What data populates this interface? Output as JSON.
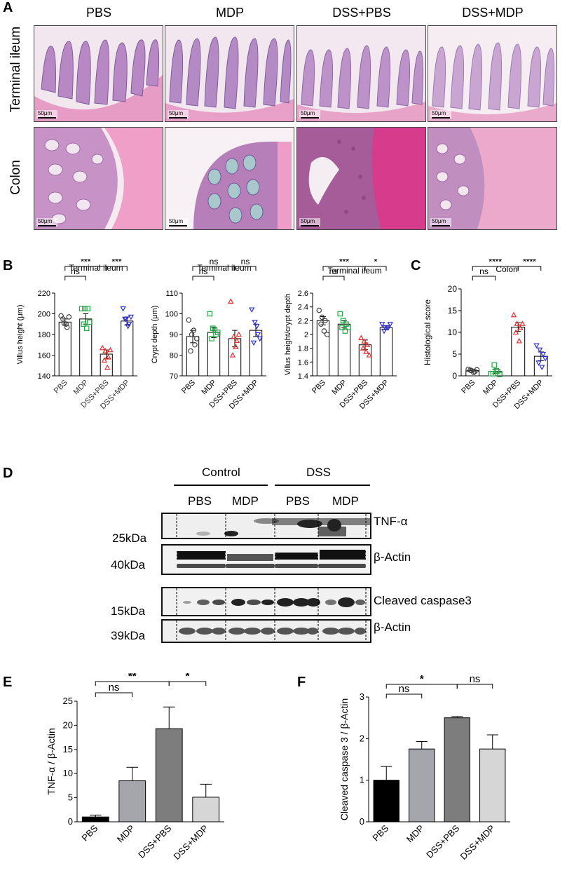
{
  "panelA": {
    "letter": "A",
    "columns": [
      "PBS",
      "MDP",
      "DSS+PBS",
      "DSS+MDP"
    ],
    "rows": [
      "Terminal ileum",
      "Colon"
    ],
    "scale": "50μm"
  },
  "panelB": {
    "letter": "B"
  },
  "panelC": {
    "letter": "C"
  },
  "panelD": {
    "letter": "D",
    "groups": [
      "Control",
      "DSS"
    ],
    "lanes": [
      "PBS",
      "MDP",
      "PBS",
      "MDP"
    ],
    "bands": [
      {
        "name": "TNF-α",
        "marker": "25kDa"
      },
      {
        "name": "β-Actin",
        "marker": "40kDa"
      },
      {
        "name": "Cleaved caspase3",
        "marker": "15kDa"
      },
      {
        "name": "β-Actin",
        "marker": "39kDa"
      }
    ]
  },
  "panelE": {
    "letter": "E"
  },
  "panelF": {
    "letter": "F"
  },
  "chart_data": [
    {
      "id": "B1",
      "type": "bar",
      "title": "Terminal ileum",
      "ylabel": "Villus height (μm)",
      "categories": [
        "PBS",
        "MDP",
        "DSS+PBS",
        "DSS+MDP"
      ],
      "values": [
        192,
        195,
        161,
        193
      ],
      "errors": [
        3,
        5,
        4,
        4
      ],
      "points": [
        [
          198,
          191,
          187,
          195,
          190,
          197
        ],
        [
          205,
          205,
          205,
          190,
          186,
          192
        ],
        [
          167,
          164,
          158,
          155,
          148,
          165
        ],
        [
          205,
          195,
          190,
          195,
          188,
          197
        ]
      ],
      "ylim": [
        140,
        220
      ],
      "yticks": [
        140,
        160,
        180,
        200,
        220
      ],
      "colors": [
        "#444444",
        "#22aa44",
        "#e03030",
        "#3030cc"
      ],
      "markers": [
        "circle",
        "square",
        "triangle-up",
        "triangle-down"
      ],
      "sig": [
        {
          "from": 0,
          "to": 1,
          "label": "ns",
          "level": 0
        },
        {
          "from": 0,
          "to": 2,
          "label": "***",
          "level": 1
        },
        {
          "from": 2,
          "to": 3,
          "label": "***",
          "level": 1
        }
      ]
    },
    {
      "id": "B2",
      "type": "bar",
      "title": "Terminal ileum",
      "ylabel": "Crypt depth (μm)",
      "categories": [
        "PBS",
        "MDP",
        "DSS+PBS",
        "DSS+MDP"
      ],
      "values": [
        89,
        91,
        88,
        92
      ],
      "errors": [
        3,
        2.5,
        4,
        3
      ],
      "points": [
        [
          97,
          90,
          85,
          82,
          92,
          88
        ],
        [
          100,
          93,
          90,
          88,
          92,
          91
        ],
        [
          106,
          89,
          87,
          80,
          84,
          90
        ],
        [
          102,
          96,
          90,
          86,
          94,
          88
        ]
      ],
      "ylim": [
        70,
        110
      ],
      "yticks": [
        70,
        80,
        90,
        100,
        110
      ],
      "colors": [
        "#444444",
        "#22aa44",
        "#e03030",
        "#3030cc"
      ],
      "markers": [
        "circle",
        "square",
        "triangle-up",
        "triangle-down"
      ],
      "sig": [
        {
          "from": 0,
          "to": 1,
          "label": "ns",
          "level": 0
        },
        {
          "from": 0,
          "to": 2,
          "label": "ns",
          "level": 1
        },
        {
          "from": 2,
          "to": 3,
          "label": "ns",
          "level": 1
        }
      ]
    },
    {
      "id": "B3",
      "type": "bar",
      "title": "Terminal ileum",
      "ylabel": "Villus height/crypt depth",
      "categories": [
        "PBS",
        "MDP",
        "DSS+PBS",
        "DSS+MDP"
      ],
      "values": [
        2.2,
        2.15,
        1.85,
        2.1
      ],
      "errors": [
        0.06,
        0.05,
        0.07,
        0.03
      ],
      "points": [
        [
          2.35,
          2.25,
          2.2,
          2.15,
          2.05,
          2.0
        ],
        [
          2.3,
          2.2,
          2.15,
          2.1,
          2.05,
          2.1
        ],
        [
          1.95,
          1.9,
          1.85,
          1.8,
          1.75,
          1.7
        ],
        [
          2.15,
          2.1,
          2.1,
          2.05,
          2.1,
          2.15
        ]
      ],
      "ylim": [
        1.4,
        2.6
      ],
      "yticks": [
        1.4,
        1.6,
        1.8,
        2.0,
        2.2,
        2.4,
        2.6
      ],
      "colors": [
        "#444444",
        "#22aa44",
        "#e03030",
        "#3030cc"
      ],
      "markers": [
        "circle",
        "square",
        "triangle-up",
        "triangle-down"
      ],
      "sig": [
        {
          "from": 0,
          "to": 1,
          "label": "ns",
          "level": 0
        },
        {
          "from": 0,
          "to": 2,
          "label": "***",
          "level": 1
        },
        {
          "from": 2,
          "to": 3,
          "label": "*",
          "level": 1
        }
      ]
    },
    {
      "id": "C",
      "type": "bar",
      "title": "Colon",
      "ylabel": "Histological score",
      "categories": [
        "PBS",
        "MDP",
        "DSS+PBS",
        "DSS+MDP"
      ],
      "values": [
        1.2,
        1.0,
        11.2,
        4.5
      ],
      "errors": [
        0.3,
        0.5,
        1.0,
        1.0
      ],
      "points": [
        [
          1.5,
          1.2,
          1.0,
          1.3,
          0.8,
          1.4
        ],
        [
          0.5,
          2.5,
          1.0,
          0.5,
          1.2,
          0.3
        ],
        [
          14,
          12,
          11,
          10,
          8,
          12
        ],
        [
          7,
          6,
          5,
          3,
          2,
          4
        ]
      ],
      "ylim": [
        0,
        20
      ],
      "yticks": [
        0,
        5,
        10,
        15,
        20
      ],
      "colors": [
        "#444444",
        "#22aa44",
        "#e03030",
        "#3030cc"
      ],
      "markers": [
        "circle",
        "square",
        "triangle-up",
        "triangle-down"
      ],
      "sig": [
        {
          "from": 0,
          "to": 1,
          "label": "ns",
          "level": 0
        },
        {
          "from": 0,
          "to": 2,
          "label": "****",
          "level": 1
        },
        {
          "from": 2,
          "to": 3,
          "label": "****",
          "level": 1
        }
      ]
    },
    {
      "id": "E",
      "type": "bar",
      "ylabel": "TNF-α / β-Actin",
      "categories": [
        "PBS",
        "MDP",
        "DSS+PBS",
        "DSS+MDP"
      ],
      "values": [
        1.0,
        8.5,
        19.3,
        5.1
      ],
      "errors": [
        0.4,
        2.8,
        4.5,
        2.7
      ],
      "ylim": [
        0,
        25
      ],
      "yticks": [
        0,
        5,
        10,
        15,
        20,
        25
      ],
      "colors": [
        "#000000",
        "#a5a5ac",
        "#7d7d7d",
        "#d6d6d6"
      ],
      "sig": [
        {
          "from": 0,
          "to": 1,
          "label": "ns",
          "level": 0
        },
        {
          "from": 0,
          "to": 2,
          "label": "**",
          "level": 1
        },
        {
          "from": 2,
          "to": 3,
          "label": "*",
          "level": 1
        }
      ]
    },
    {
      "id": "F",
      "type": "bar",
      "ylabel": "Cleaved caspase 3 / β-Actin",
      "categories": [
        "PBS",
        "MDP",
        "DSS+PBS",
        "DSS+MDP"
      ],
      "values": [
        1.0,
        1.75,
        2.5,
        1.75
      ],
      "errors": [
        0.33,
        0.18,
        0.03,
        0.34
      ],
      "ylim": [
        0,
        3
      ],
      "yticks": [
        0,
        1,
        2,
        3
      ],
      "colors": [
        "#000000",
        "#a5a5ac",
        "#7d7d7d",
        "#d6d6d6"
      ],
      "sig": [
        {
          "from": 0,
          "to": 1,
          "label": "ns",
          "level": 0
        },
        {
          "from": 0,
          "to": 2,
          "label": "*",
          "level": 1
        },
        {
          "from": 2,
          "to": 3,
          "label": "ns",
          "level": 1
        }
      ]
    }
  ]
}
